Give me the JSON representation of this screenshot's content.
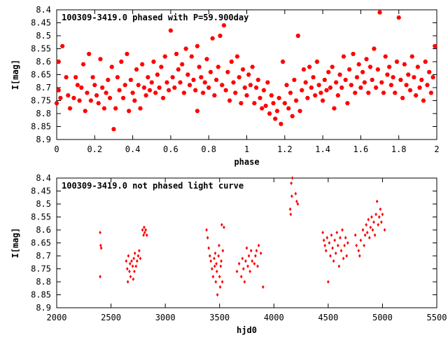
{
  "chart_data": [
    {
      "type": "scatter",
      "title": "100309-3419.0 phased with P=59.900day",
      "xlabel": "phase",
      "ylabel": "I[mag]",
      "xlim": [
        0,
        2
      ],
      "ylim": [
        8.4,
        8.9
      ],
      "y_inverted": true,
      "x_ticks": [
        0,
        0.2,
        0.4,
        0.6,
        0.8,
        1,
        1.2,
        1.4,
        1.6,
        1.8,
        2
      ],
      "x_tick_labels": [
        "0",
        "0.2",
        "0.4",
        "0.6",
        "0.8",
        "1",
        "1.2",
        "1.4",
        "1.6",
        "1.8",
        "2"
      ],
      "y_ticks": [
        8.4,
        8.45,
        8.5,
        8.55,
        8.6,
        8.65,
        8.7,
        8.75,
        8.8,
        8.85,
        8.9
      ],
      "y_tick_labels": [
        "8.4",
        "8.45",
        "8.5",
        "8.55",
        "8.6",
        "8.65",
        "8.7",
        "8.75",
        "8.8",
        "8.85",
        "8.9"
      ],
      "marker": "filled-hexagon",
      "color": "#ff0000",
      "points": [
        [
          0.0,
          8.76
        ],
        [
          0.01,
          8.71
        ],
        [
          0.01,
          8.6
        ],
        [
          0.02,
          8.74
        ],
        [
          0.03,
          8.54
        ],
        [
          0.05,
          8.66
        ],
        [
          0.06,
          8.73
        ],
        [
          0.07,
          8.78
        ],
        [
          0.09,
          8.74
        ],
        [
          0.1,
          8.66
        ],
        [
          0.11,
          8.69
        ],
        [
          0.12,
          8.75
        ],
        [
          0.13,
          8.7
        ],
        [
          0.14,
          8.61
        ],
        [
          0.15,
          8.79
        ],
        [
          0.16,
          8.72
        ],
        [
          0.17,
          8.57
        ],
        [
          0.18,
          8.75
        ],
        [
          0.19,
          8.66
        ],
        [
          0.2,
          8.69
        ],
        [
          0.21,
          8.73
        ],
        [
          0.22,
          8.76
        ],
        [
          0.23,
          8.59
        ],
        [
          0.24,
          8.7
        ],
        [
          0.25,
          8.78
        ],
        [
          0.26,
          8.72
        ],
        [
          0.27,
          8.67
        ],
        [
          0.28,
          8.74
        ],
        [
          0.29,
          8.62
        ],
        [
          0.3,
          8.86
        ],
        [
          0.31,
          8.78
        ],
        [
          0.32,
          8.66
        ],
        [
          0.33,
          8.71
        ],
        [
          0.34,
          8.6
        ],
        [
          0.35,
          8.74
        ],
        [
          0.36,
          8.69
        ],
        [
          0.37,
          8.57
        ],
        [
          0.38,
          8.79
        ],
        [
          0.39,
          8.67
        ],
        [
          0.4,
          8.72
        ],
        [
          0.41,
          8.75
        ],
        [
          0.42,
          8.63
        ],
        [
          0.43,
          8.69
        ],
        [
          0.44,
          8.78
        ],
        [
          0.45,
          8.61
        ],
        [
          0.46,
          8.7
        ],
        [
          0.47,
          8.73
        ],
        [
          0.48,
          8.66
        ],
        [
          0.49,
          8.71
        ],
        [
          0.5,
          8.68
        ],
        [
          0.51,
          8.6
        ],
        [
          0.52,
          8.72
        ],
        [
          0.53,
          8.65
        ],
        [
          0.54,
          8.7
        ],
        [
          0.55,
          8.62
        ],
        [
          0.56,
          8.74
        ],
        [
          0.57,
          8.58
        ],
        [
          0.58,
          8.68
        ],
        [
          0.59,
          8.71
        ],
        [
          0.6,
          8.48
        ],
        [
          0.61,
          8.66
        ],
        [
          0.62,
          8.7
        ],
        [
          0.63,
          8.57
        ],
        [
          0.64,
          8.63
        ],
        [
          0.65,
          8.68
        ],
        [
          0.66,
          8.61
        ],
        [
          0.67,
          8.72
        ],
        [
          0.68,
          8.55
        ],
        [
          0.69,
          8.65
        ],
        [
          0.7,
          8.69
        ],
        [
          0.71,
          8.58
        ],
        [
          0.72,
          8.67
        ],
        [
          0.73,
          8.71
        ],
        [
          0.74,
          8.54
        ],
        [
          0.74,
          8.79
        ],
        [
          0.75,
          8.62
        ],
        [
          0.76,
          8.66
        ],
        [
          0.77,
          8.72
        ],
        [
          0.78,
          8.68
        ],
        [
          0.79,
          8.59
        ],
        [
          0.8,
          8.7
        ],
        [
          0.81,
          8.64
        ],
        [
          0.82,
          8.51
        ],
        [
          0.83,
          8.73
        ],
        [
          0.84,
          8.67
        ],
        [
          0.85,
          8.62
        ],
        [
          0.86,
          8.5
        ],
        [
          0.87,
          8.69
        ],
        [
          0.88,
          8.46
        ],
        [
          0.89,
          8.71
        ],
        [
          0.9,
          8.64
        ],
        [
          0.91,
          8.75
        ],
        [
          0.92,
          8.6
        ],
        [
          0.93,
          8.68
        ],
        [
          0.94,
          8.72
        ],
        [
          0.95,
          8.58
        ],
        [
          0.96,
          8.66
        ],
        [
          0.97,
          8.76
        ],
        [
          0.98,
          8.63
        ],
        [
          0.99,
          8.7
        ],
        [
          1.0,
          8.73
        ],
        [
          1.01,
          8.65
        ],
        [
          1.02,
          8.69
        ],
        [
          1.03,
          8.62
        ],
        [
          1.04,
          8.76
        ],
        [
          1.05,
          8.7
        ],
        [
          1.06,
          8.67
        ],
        [
          1.07,
          8.74
        ],
        [
          1.08,
          8.78
        ],
        [
          1.09,
          8.71
        ],
        [
          1.1,
          8.77
        ],
        [
          1.11,
          8.68
        ],
        [
          1.12,
          8.8
        ],
        [
          1.13,
          8.73
        ],
        [
          1.14,
          8.76
        ],
        [
          1.15,
          8.82
        ],
        [
          1.16,
          8.79
        ],
        [
          1.17,
          8.74
        ],
        [
          1.18,
          8.84
        ],
        [
          1.19,
          8.6
        ],
        [
          1.2,
          8.76
        ],
        [
          1.21,
          8.69
        ],
        [
          1.22,
          8.78
        ],
        [
          1.23,
          8.72
        ],
        [
          1.24,
          8.81
        ],
        [
          1.25,
          8.67
        ],
        [
          1.26,
          8.75
        ],
        [
          1.27,
          8.5
        ],
        [
          1.28,
          8.79
        ],
        [
          1.29,
          8.71
        ],
        [
          1.3,
          8.63
        ],
        [
          1.31,
          8.68
        ],
        [
          1.32,
          8.74
        ],
        [
          1.33,
          8.62
        ],
        [
          1.34,
          8.7
        ],
        [
          1.35,
          8.66
        ],
        [
          1.36,
          8.73
        ],
        [
          1.37,
          8.6
        ],
        [
          1.38,
          8.69
        ],
        [
          1.39,
          8.72
        ],
        [
          1.4,
          8.75
        ],
        [
          1.41,
          8.67
        ],
        [
          1.42,
          8.71
        ],
        [
          1.43,
          8.64
        ],
        [
          1.44,
          8.7
        ],
        [
          1.45,
          8.62
        ],
        [
          1.46,
          8.78
        ],
        [
          1.47,
          8.68
        ],
        [
          1.48,
          8.73
        ],
        [
          1.49,
          8.65
        ],
        [
          1.5,
          8.7
        ],
        [
          1.51,
          8.58
        ],
        [
          1.52,
          8.67
        ],
        [
          1.53,
          8.76
        ],
        [
          1.54,
          8.63
        ],
        [
          1.55,
          8.69
        ],
        [
          1.56,
          8.57
        ],
        [
          1.57,
          8.72
        ],
        [
          1.58,
          8.66
        ],
        [
          1.59,
          8.61
        ],
        [
          1.6,
          8.7
        ],
        [
          1.61,
          8.64
        ],
        [
          1.62,
          8.68
        ],
        [
          1.63,
          8.59
        ],
        [
          1.64,
          8.72
        ],
        [
          1.65,
          8.62
        ],
        [
          1.66,
          8.67
        ],
        [
          1.67,
          8.55
        ],
        [
          1.68,
          8.7
        ],
        [
          1.69,
          8.63
        ],
        [
          1.7,
          8.41
        ],
        [
          1.71,
          8.68
        ],
        [
          1.72,
          8.72
        ],
        [
          1.73,
          8.58
        ],
        [
          1.74,
          8.65
        ],
        [
          1.75,
          8.62
        ],
        [
          1.76,
          8.69
        ],
        [
          1.77,
          8.66
        ],
        [
          1.78,
          8.72
        ],
        [
          1.79,
          8.6
        ],
        [
          1.8,
          8.43
        ],
        [
          1.81,
          8.67
        ],
        [
          1.82,
          8.74
        ],
        [
          1.83,
          8.61
        ],
        [
          1.84,
          8.69
        ],
        [
          1.85,
          8.65
        ],
        [
          1.86,
          8.71
        ],
        [
          1.87,
          8.58
        ],
        [
          1.88,
          8.66
        ],
        [
          1.89,
          8.73
        ],
        [
          1.9,
          8.62
        ],
        [
          1.91,
          8.7
        ],
        [
          1.92,
          8.67
        ],
        [
          1.93,
          8.75
        ],
        [
          1.94,
          8.6
        ],
        [
          1.95,
          8.69
        ],
        [
          1.96,
          8.64
        ],
        [
          1.97,
          8.72
        ],
        [
          1.98,
          8.66
        ],
        [
          1.99,
          8.54
        ]
      ]
    },
    {
      "type": "scatter",
      "title": "100309-3419.0 not phased light curve",
      "xlabel": "hjd0",
      "ylabel": "I[mag]",
      "xlim": [
        2000,
        5500
      ],
      "ylim": [
        8.4,
        8.9
      ],
      "y_inverted": true,
      "x_ticks": [
        2000,
        2500,
        3000,
        3500,
        4000,
        4500,
        5000,
        5500
      ],
      "x_tick_labels": [
        "2000",
        "2500",
        "3000",
        "3500",
        "4000",
        "4500",
        "5000",
        "5500"
      ],
      "y_ticks": [
        8.4,
        8.45,
        8.5,
        8.55,
        8.6,
        8.65,
        8.7,
        8.75,
        8.8,
        8.85,
        8.9
      ],
      "y_tick_labels": [
        "8.4",
        "8.45",
        "8.5",
        "8.55",
        "8.6",
        "8.65",
        "8.7",
        "8.75",
        "8.8",
        "8.85",
        "8.9"
      ],
      "marker": "small-diamond",
      "color": "#ff0000",
      "points": [
        [
          2400,
          8.61
        ],
        [
          2405,
          8.66
        ],
        [
          2410,
          8.67
        ],
        [
          2400,
          8.78
        ],
        [
          2640,
          8.72
        ],
        [
          2650,
          8.75
        ],
        [
          2655,
          8.8
        ],
        [
          2660,
          8.7
        ],
        [
          2670,
          8.76
        ],
        [
          2675,
          8.73
        ],
        [
          2680,
          8.78
        ],
        [
          2690,
          8.72
        ],
        [
          2700,
          8.74
        ],
        [
          2705,
          8.79
        ],
        [
          2710,
          8.71
        ],
        [
          2715,
          8.76
        ],
        [
          2720,
          8.69
        ],
        [
          2730,
          8.74
        ],
        [
          2740,
          8.72
        ],
        [
          2750,
          8.7
        ],
        [
          2760,
          8.68
        ],
        [
          2770,
          8.71
        ],
        [
          2790,
          8.6
        ],
        [
          2800,
          8.62
        ],
        [
          2805,
          8.59
        ],
        [
          2810,
          8.61
        ],
        [
          2820,
          8.6
        ],
        [
          2830,
          8.62
        ],
        [
          3380,
          8.6
        ],
        [
          3390,
          8.63
        ],
        [
          3400,
          8.67
        ],
        [
          3410,
          8.7
        ],
        [
          3420,
          8.72
        ],
        [
          3430,
          8.75
        ],
        [
          3440,
          8.78
        ],
        [
          3450,
          8.71
        ],
        [
          3455,
          8.74
        ],
        [
          3460,
          8.69
        ],
        [
          3465,
          8.8
        ],
        [
          3470,
          8.73
        ],
        [
          3475,
          8.76
        ],
        [
          3480,
          8.85
        ],
        [
          3490,
          8.7
        ],
        [
          3495,
          8.66
        ],
        [
          3500,
          8.78
        ],
        [
          3505,
          8.82
        ],
        [
          3510,
          8.74
        ],
        [
          3515,
          8.72
        ],
        [
          3520,
          8.58
        ],
        [
          3525,
          8.8
        ],
        [
          3530,
          8.68
        ],
        [
          3540,
          8.59
        ],
        [
          3660,
          8.76
        ],
        [
          3680,
          8.73
        ],
        [
          3700,
          8.78
        ],
        [
          3710,
          8.71
        ],
        [
          3720,
          8.75
        ],
        [
          3730,
          8.8
        ],
        [
          3740,
          8.72
        ],
        [
          3750,
          8.67
        ],
        [
          3760,
          8.74
        ],
        [
          3770,
          8.7
        ],
        [
          3780,
          8.76
        ],
        [
          3790,
          8.68
        ],
        [
          3800,
          8.72
        ],
        [
          3820,
          8.73
        ],
        [
          3830,
          8.7
        ],
        [
          3840,
          8.68
        ],
        [
          3850,
          8.74
        ],
        [
          3860,
          8.66
        ],
        [
          3880,
          8.69
        ],
        [
          3900,
          8.82
        ],
        [
          4150,
          8.52
        ],
        [
          4155,
          8.54
        ],
        [
          4160,
          8.42
        ],
        [
          4165,
          8.47
        ],
        [
          4170,
          8.4
        ],
        [
          4200,
          8.46
        ],
        [
          4210,
          8.49
        ],
        [
          4220,
          8.5
        ],
        [
          4450,
          8.61
        ],
        [
          4460,
          8.64
        ],
        [
          4470,
          8.66
        ],
        [
          4480,
          8.68
        ],
        [
          4490,
          8.63
        ],
        [
          4500,
          8.8
        ],
        [
          4510,
          8.65
        ],
        [
          4520,
          8.7
        ],
        [
          4530,
          8.62
        ],
        [
          4540,
          8.67
        ],
        [
          4550,
          8.72
        ],
        [
          4560,
          8.64
        ],
        [
          4570,
          8.69
        ],
        [
          4580,
          8.61
        ],
        [
          4590,
          8.66
        ],
        [
          4600,
          8.74
        ],
        [
          4610,
          8.63
        ],
        [
          4620,
          8.68
        ],
        [
          4630,
          8.6
        ],
        [
          4640,
          8.71
        ],
        [
          4650,
          8.66
        ],
        [
          4660,
          8.63
        ],
        [
          4670,
          8.7
        ],
        [
          4680,
          8.65
        ],
        [
          4750,
          8.62
        ],
        [
          4760,
          8.66
        ],
        [
          4780,
          8.68
        ],
        [
          4790,
          8.7
        ],
        [
          4800,
          8.64
        ],
        [
          4820,
          8.6
        ],
        [
          4830,
          8.66
        ],
        [
          4840,
          8.62
        ],
        [
          4850,
          8.58
        ],
        [
          4860,
          8.61
        ],
        [
          4870,
          8.56
        ],
        [
          4880,
          8.63
        ],
        [
          4890,
          8.59
        ],
        [
          4900,
          8.55
        ],
        [
          4910,
          8.6
        ],
        [
          4920,
          8.57
        ],
        [
          4930,
          8.62
        ],
        [
          4940,
          8.54
        ],
        [
          4950,
          8.49
        ],
        [
          4960,
          8.58
        ],
        [
          4970,
          8.55
        ],
        [
          4980,
          8.52
        ],
        [
          4990,
          8.57
        ],
        [
          5000,
          8.54
        ],
        [
          5020,
          8.6
        ]
      ]
    }
  ]
}
